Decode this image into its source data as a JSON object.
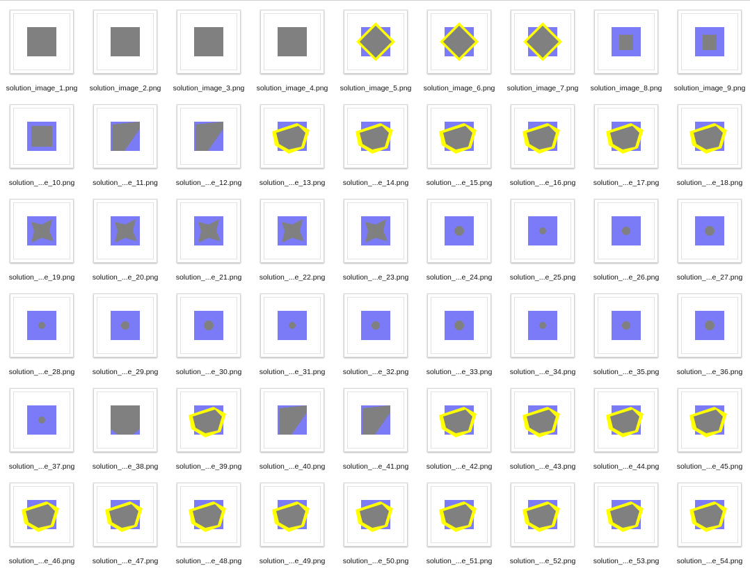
{
  "colors": {
    "frame_bg": "#ffffff",
    "square": "#7b7bf8",
    "shape": "#808080",
    "highlight": "#ffff00"
  },
  "files": [
    {
      "label": "solution_image_1.png",
      "variant": "gray"
    },
    {
      "label": "solution_image_2.png",
      "variant": "gray"
    },
    {
      "label": "solution_image_3.png",
      "variant": "gray"
    },
    {
      "label": "solution_image_4.png",
      "variant": "gray"
    },
    {
      "label": "solution_image_5.png",
      "variant": "blue-yellow-diamond"
    },
    {
      "label": "solution_image_6.png",
      "variant": "blue-yellow-diamond"
    },
    {
      "label": "solution_image_7.png",
      "variant": "blue-yellow-diamond"
    },
    {
      "label": "solution_image_8.png",
      "variant": "blue-small"
    },
    {
      "label": "solution_image_9.png",
      "variant": "blue-small"
    },
    {
      "label": "solution_...e_10.png",
      "variant": "blue-square"
    },
    {
      "label": "solution_...e_11.png",
      "variant": "blue-slant"
    },
    {
      "label": "solution_...e_12.png",
      "variant": "blue-slant"
    },
    {
      "label": "solution_...e_13.png",
      "variant": "blue-yellow-irregular"
    },
    {
      "label": "solution_...e_14.png",
      "variant": "blue-yellow-irregular"
    },
    {
      "label": "solution_...e_15.png",
      "variant": "blue-yellow-irregular"
    },
    {
      "label": "solution_...e_16.png",
      "variant": "blue-yellow-irregular"
    },
    {
      "label": "solution_...e_17.png",
      "variant": "blue-yellow-irregular"
    },
    {
      "label": "solution_...e_18.png",
      "variant": "blue-yellow-irregular"
    },
    {
      "label": "solution_...e_19.png",
      "variant": "blue-star"
    },
    {
      "label": "solution_...e_20.png",
      "variant": "blue-star"
    },
    {
      "label": "solution_...e_21.png",
      "variant": "blue-star"
    },
    {
      "label": "solution_...e_22.png",
      "variant": "blue-star"
    },
    {
      "label": "solution_...e_23.png",
      "variant": "blue-star"
    },
    {
      "label": "solution_...e_24.png",
      "variant": "blue-dot"
    },
    {
      "label": "solution_...e_25.png",
      "variant": "blue-dot"
    },
    {
      "label": "solution_...e_26.png",
      "variant": "blue-dot"
    },
    {
      "label": "solution_...e_27.png",
      "variant": "blue-dot"
    },
    {
      "label": "solution_...e_28.png",
      "variant": "blue-dot"
    },
    {
      "label": "solution_...e_29.png",
      "variant": "blue-dot"
    },
    {
      "label": "solution_...e_30.png",
      "variant": "blue-dot"
    },
    {
      "label": "solution_...e_31.png",
      "variant": "blue-dot"
    },
    {
      "label": "solution_...e_32.png",
      "variant": "blue-dot"
    },
    {
      "label": "solution_...e_33.png",
      "variant": "blue-dot"
    },
    {
      "label": "solution_...e_34.png",
      "variant": "blue-dot"
    },
    {
      "label": "solution_...e_35.png",
      "variant": "blue-dot"
    },
    {
      "label": "solution_...e_36.png",
      "variant": "blue-dot"
    },
    {
      "label": "solution_...e_37.png",
      "variant": "blue-dot"
    },
    {
      "label": "solution_...e_38.png",
      "variant": "blue-large"
    },
    {
      "label": "solution_...e_39.png",
      "variant": "blue-yellow-irregular"
    },
    {
      "label": "solution_...e_40.png",
      "variant": "blue-slant"
    },
    {
      "label": "solution_...e_41.png",
      "variant": "blue-slant"
    },
    {
      "label": "solution_...e_42.png",
      "variant": "blue-yellow-irregular"
    },
    {
      "label": "solution_...e_43.png",
      "variant": "blue-yellow-irregular"
    },
    {
      "label": "solution_...e_44.png",
      "variant": "blue-yellow-irregular"
    },
    {
      "label": "solution_...e_45.png",
      "variant": "blue-yellow-irregular"
    },
    {
      "label": "solution_...e_46.png",
      "variant": "blue-yellow-irregular"
    },
    {
      "label": "solution_...e_47.png",
      "variant": "blue-yellow-irregular"
    },
    {
      "label": "solution_...e_48.png",
      "variant": "blue-yellow-irregular"
    },
    {
      "label": "solution_...e_49.png",
      "variant": "blue-yellow-irregular"
    },
    {
      "label": "solution_...e_50.png",
      "variant": "blue-yellow-irregular"
    },
    {
      "label": "solution_...e_51.png",
      "variant": "blue-yellow-irregular"
    },
    {
      "label": "solution_...e_52.png",
      "variant": "blue-yellow-irregular"
    },
    {
      "label": "solution_...e_53.png",
      "variant": "blue-yellow-irregular"
    },
    {
      "label": "solution_...e_54.png",
      "variant": "blue-yellow-irregular"
    }
  ]
}
